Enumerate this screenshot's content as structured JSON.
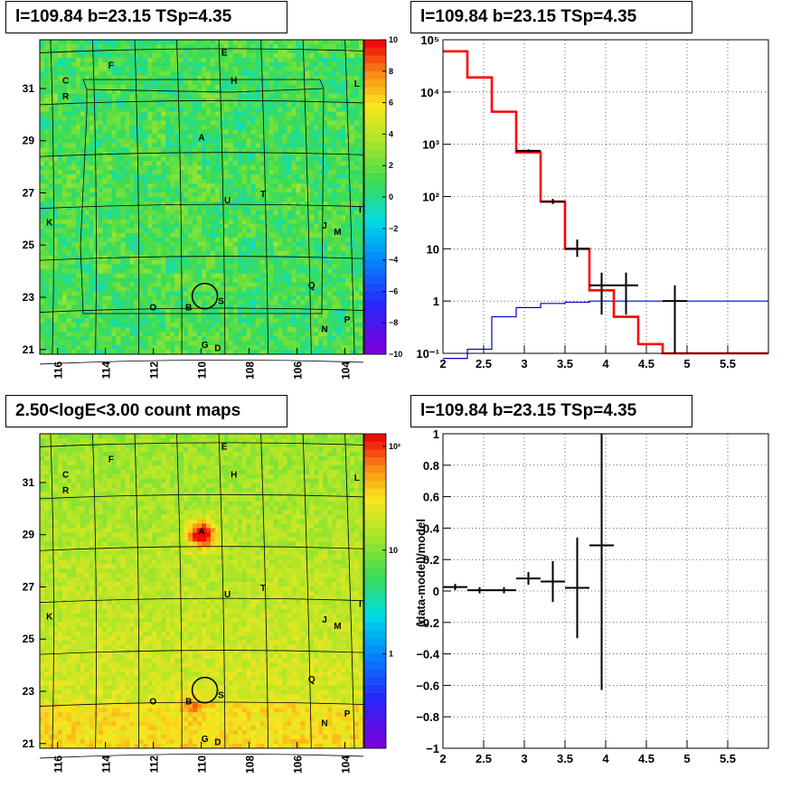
{
  "panels": {
    "top_left_title": "l=109.84 b=23.15 TSp=4.35",
    "top_right_title": "l=109.84 b=23.15 TSp=4.35",
    "bottom_left_title": "2.50<logE<3.00 count maps",
    "bottom_right_title": "l=109.84 b=23.15 TSp=4.35"
  },
  "colors": {
    "model_line": "#ff0000",
    "background_line": "#0000cc",
    "data_points": "#000000"
  },
  "chart_data": [
    {
      "type": "heatmap",
      "name": "ts_map",
      "x_ticks": [
        "116",
        "114",
        "112",
        "110",
        "108",
        "106",
        "104"
      ],
      "y_ticks": [
        "21",
        "23",
        "25",
        "27",
        "29",
        "31"
      ],
      "colorbar_ticks": [
        "10",
        "8",
        "6",
        "4",
        "2",
        "0",
        "−2",
        "−4",
        "−6",
        "−8",
        "−10"
      ],
      "source_labels": [
        "F",
        "E",
        "C",
        "H",
        "L",
        "R",
        "A",
        "U",
        "T",
        "K",
        "J",
        "M",
        "I",
        "Q",
        "B",
        "S",
        "O",
        "P",
        "N",
        "G",
        "D"
      ]
    },
    {
      "type": "line",
      "name": "spectrum",
      "yscale": "log",
      "xlim": [
        2,
        6
      ],
      "ylim": [
        0.1,
        100000
      ],
      "x_ticks": [
        "2",
        "2.5",
        "3",
        "3.5",
        "4",
        "4.5",
        "5",
        "5.5"
      ],
      "y_ticks": [
        "10⁻¹",
        "1",
        "10",
        "10²",
        "10³",
        "10⁴",
        "10⁵"
      ],
      "model_edges": [
        2.0,
        2.3,
        2.6,
        2.9,
        3.2,
        3.5,
        3.8,
        4.1,
        4.4,
        4.7,
        5.0,
        6.0
      ],
      "model_values": [
        60000,
        19000,
        4200,
        700,
        80,
        10,
        1.6,
        0.5,
        0.15,
        0.1,
        0.1
      ],
      "background_edges": [
        2.0,
        2.3,
        2.6,
        2.9,
        3.2,
        3.5,
        3.8,
        4.1,
        4.4,
        4.7,
        5.0,
        6.0
      ],
      "background_values": [
        0.08,
        0.12,
        0.5,
        0.75,
        0.9,
        0.95,
        1.0,
        1.0,
        1.0,
        1.0,
        1.0
      ],
      "data_points": [
        {
          "x": 3.05,
          "y": 750,
          "xerr": 0.15,
          "ylo": 700,
          "yhi": 800
        },
        {
          "x": 3.35,
          "y": 80,
          "xerr": 0.15,
          "ylo": 72,
          "yhi": 90
        },
        {
          "x": 3.65,
          "y": 10,
          "xerr": 0.15,
          "ylo": 7,
          "yhi": 15
        },
        {
          "x": 3.95,
          "y": 2,
          "xerr": 0.15,
          "ylo": 0.55,
          "yhi": 3.5
        },
        {
          "x": 4.25,
          "y": 2,
          "xerr": 0.15,
          "ylo": 0.55,
          "yhi": 3.5
        },
        {
          "x": 4.85,
          "y": 1,
          "xerr": 0.15,
          "ylo": 0.1,
          "yhi": 2
        }
      ]
    },
    {
      "type": "heatmap",
      "name": "count_map",
      "x_ticks": [
        "116",
        "114",
        "112",
        "110",
        "108",
        "106",
        "104"
      ],
      "y_ticks": [
        "21",
        "23",
        "25",
        "27",
        "29",
        "31"
      ],
      "colorbar_ticks": [
        "10²",
        "10",
        "1"
      ],
      "source_labels": [
        "F",
        "E",
        "C",
        "H",
        "L",
        "R",
        "A",
        "U",
        "T",
        "K",
        "J",
        "M",
        "I",
        "Q",
        "B",
        "S",
        "O",
        "P",
        "N",
        "G",
        "D"
      ]
    },
    {
      "type": "scatter",
      "name": "residuals",
      "ylabel": "(data-model)/model",
      "xlim": [
        2,
        6
      ],
      "ylim": [
        -1,
        1
      ],
      "x_ticks": [
        "2",
        "2.5",
        "3",
        "3.5",
        "4",
        "4.5",
        "5",
        "5.5"
      ],
      "y_ticks": [
        "1",
        "0.8",
        "0.6",
        "0.4",
        "0.2",
        "0",
        "−0.2",
        "−0.4",
        "−0.6",
        "−0.8",
        "−1"
      ],
      "points": [
        {
          "x": 2.15,
          "y": 0.025,
          "xerr": 0.15,
          "yerr": 0.02
        },
        {
          "x": 2.45,
          "y": 0.005,
          "xerr": 0.15,
          "yerr": 0.02
        },
        {
          "x": 2.75,
          "y": 0.005,
          "xerr": 0.15,
          "yerr": 0.02
        },
        {
          "x": 3.05,
          "y": 0.08,
          "xerr": 0.15,
          "yerr": 0.04
        },
        {
          "x": 3.35,
          "y": 0.06,
          "xerr": 0.15,
          "yerr": 0.13
        },
        {
          "x": 3.65,
          "y": 0.02,
          "xerr": 0.15,
          "yerr": 0.32
        },
        {
          "x": 3.95,
          "y": 0.29,
          "xerr": 0.15,
          "ylo": -0.63,
          "yhi": 1.0
        }
      ]
    }
  ]
}
